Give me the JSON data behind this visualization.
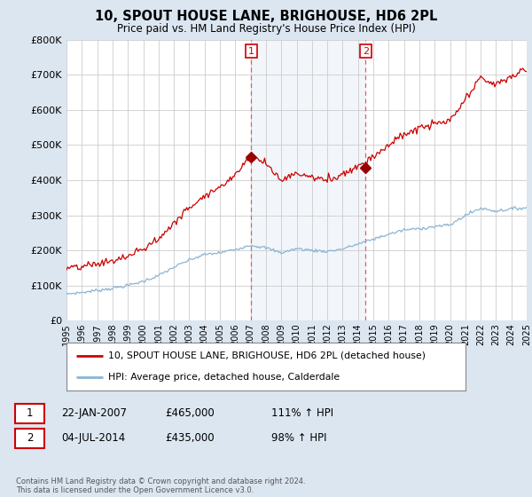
{
  "title": "10, SPOUT HOUSE LANE, BRIGHOUSE, HD6 2PL",
  "subtitle": "Price paid vs. HM Land Registry's House Price Index (HPI)",
  "background_color": "#dce6f1",
  "plot_bg_color": "#ffffff",
  "grid_color": "#cccccc",
  "hpi_line_color": "#8ab4d4",
  "price_line_color": "#cc0000",
  "marker_fill_color": "#990000",
  "sale1_date_num": 2007.05,
  "sale1_price": 465000,
  "sale1_label": "1",
  "sale2_date_num": 2014.5,
  "sale2_price": 435000,
  "sale2_label": "2",
  "xmin": 1995,
  "xmax": 2025,
  "ymin": 0,
  "ymax": 800000,
  "yticks": [
    0,
    100000,
    200000,
    300000,
    400000,
    500000,
    600000,
    700000,
    800000
  ],
  "ytick_labels": [
    "£0",
    "£100K",
    "£200K",
    "£300K",
    "£400K",
    "£500K",
    "£600K",
    "£700K",
    "£800K"
  ],
  "xticks": [
    1995,
    1996,
    1997,
    1998,
    1999,
    2000,
    2001,
    2002,
    2003,
    2004,
    2005,
    2006,
    2007,
    2008,
    2009,
    2010,
    2011,
    2012,
    2013,
    2014,
    2015,
    2016,
    2017,
    2018,
    2019,
    2020,
    2021,
    2022,
    2023,
    2024,
    2025
  ],
  "legend_label_price": "10, SPOUT HOUSE LANE, BRIGHOUSE, HD6 2PL (detached house)",
  "legend_label_hpi": "HPI: Average price, detached house, Calderdale",
  "annotation1_date": "22-JAN-2007",
  "annotation1_price": "£465,000",
  "annotation1_hpi": "111% ↑ HPI",
  "annotation2_date": "04-JUL-2014",
  "annotation2_price": "£435,000",
  "annotation2_hpi": "98% ↑ HPI",
  "footer": "Contains HM Land Registry data © Crown copyright and database right 2024.\nThis data is licensed under the Open Government Licence v3.0."
}
